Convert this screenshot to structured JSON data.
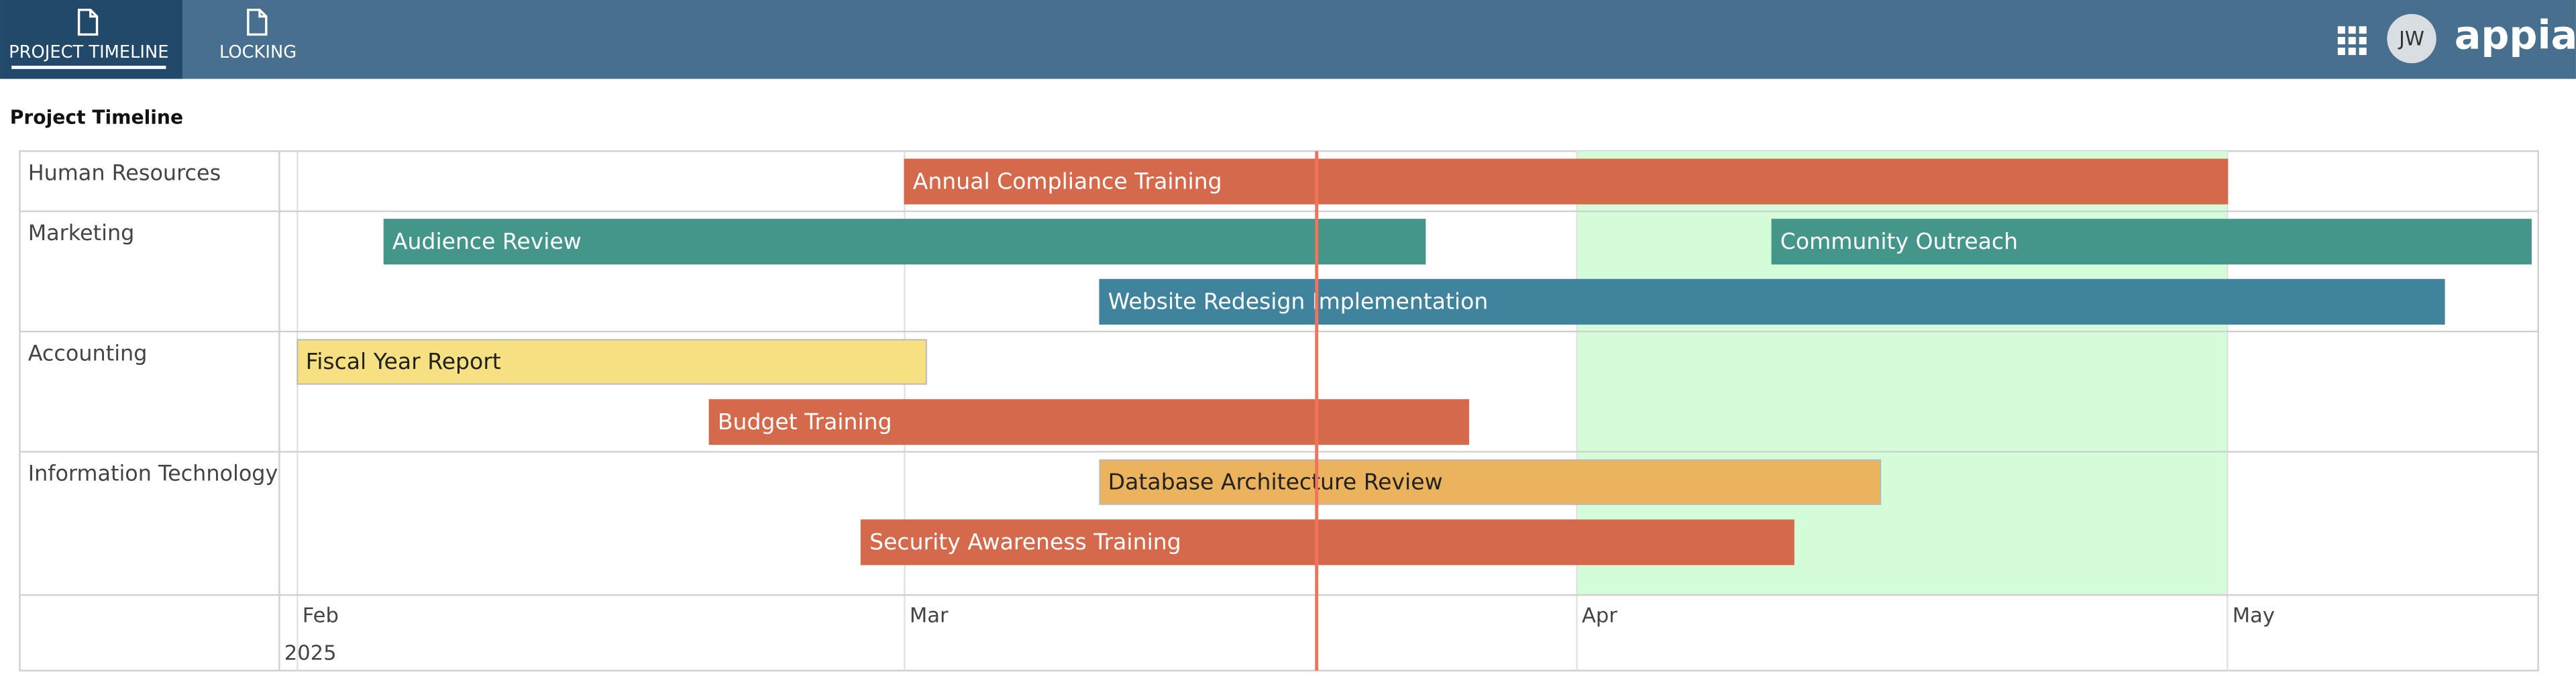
{
  "header": {
    "tabs": [
      "PROJECT TIMELINE",
      "LOCKING"
    ],
    "avatar": "JW",
    "logo": "appian"
  },
  "chart_data": {
    "type": "gantt",
    "title": "Project Timeline",
    "groups": [
      {
        "name": "Human Resources",
        "rows": [
          [
            {
              "name": "Annual Compliance Training",
              "start": 59,
              "end": 120,
              "color": "#d4694c",
              "text_color": "#ffffff"
            }
          ]
        ]
      },
      {
        "name": "Marketing",
        "rows": [
          [
            {
              "name": "Audience Review",
              "start": 35,
              "end": 83,
              "color": "#44968b",
              "text_color": "#ffffff"
            },
            {
              "name": "Community Outreach",
              "start": 99,
              "end": 134,
              "color": "#44968b",
              "text_color": "#ffffff"
            }
          ],
          [
            {
              "name": "Website Redesign Implementation",
              "start": 68,
              "end": 130,
              "color": "#3f849c",
              "text_color": "#ffffff"
            }
          ]
        ]
      },
      {
        "name": "Accounting",
        "rows": [
          [
            {
              "name": "Fiscal Year Report",
              "start": 31,
              "end": 60,
              "color": "#f7e082",
              "text_color": "#222222"
            }
          ],
          [
            {
              "name": "Budget Training",
              "start": 50,
              "end": 85,
              "color": "#d4694c",
              "text_color": "#ffffff"
            }
          ]
        ]
      },
      {
        "name": "Information Technology",
        "rows": [
          [
            {
              "name": "Database Architecture Review",
              "start": 68,
              "end": 104,
              "color": "#ecb35f",
              "text_color": "#222222"
            }
          ],
          [
            {
              "name": "Security Awareness Training",
              "start": 57,
              "end": 100,
              "color": "#d4694c",
              "text_color": "#ffffff"
            }
          ]
        ]
      }
    ],
    "xlim": [
      30.24,
      134.33
    ],
    "xticks": [
      {
        "value": 31,
        "label": "Feb"
      },
      {
        "value": 59,
        "label": "Mar"
      },
      {
        "value": 90,
        "label": "Apr"
      },
      {
        "value": 120,
        "label": "May"
      }
    ],
    "year_label": "2025",
    "today": 78,
    "today_color": "#f0735a",
    "highlight": [
      90,
      120
    ],
    "highlight_color": "#d5fcd8"
  }
}
